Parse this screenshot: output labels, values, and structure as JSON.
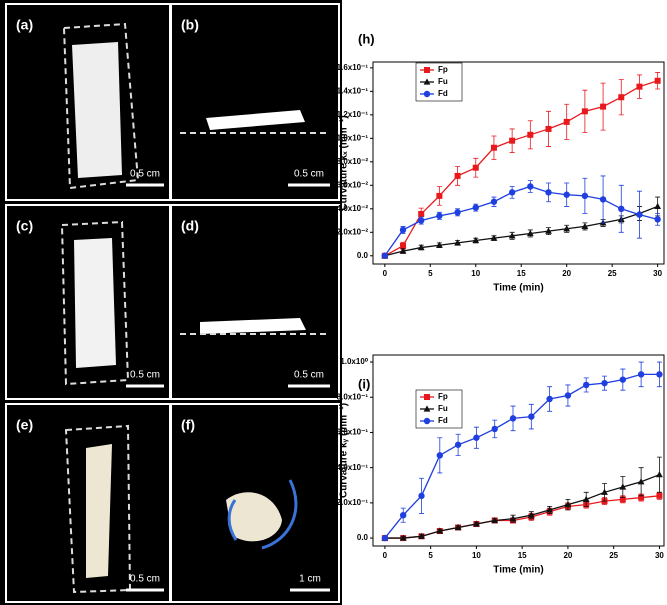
{
  "photo_panels": [
    {
      "label": "(a)",
      "scale": "0.5 cm"
    },
    {
      "label": "(b)",
      "scale": "0.5 cm"
    },
    {
      "label": "(c)",
      "scale": "0.5 cm"
    },
    {
      "label": "(d)",
      "scale": "0.5 cm"
    },
    {
      "label": "(e)",
      "scale": "0.5 cm"
    },
    {
      "label": "(f)",
      "scale": "1 cm"
    }
  ],
  "chart_data": [
    {
      "type": "line",
      "title": "(h)",
      "y_label": "Curvature κₓ (mm⁻¹)",
      "x_label": "Time (min)",
      "x": [
        0,
        2,
        4,
        6,
        8,
        10,
        12,
        14,
        16,
        18,
        20,
        22,
        24,
        26,
        28,
        30
      ],
      "xlim": [
        -1.3,
        30.7
      ],
      "xticks": [
        0,
        5,
        10,
        15,
        20,
        25,
        30
      ],
      "ylim": [
        -0.007,
        0.165
      ],
      "yticks": [
        {
          "value": 0,
          "label": "0.0"
        },
        {
          "value": 0.02,
          "label": "2.0x10⁻²"
        },
        {
          "value": 0.04,
          "label": "4.0x10⁻²"
        },
        {
          "value": 0.06,
          "label": "6.0x10⁻²"
        },
        {
          "value": 0.08,
          "label": "8.0x10⁻²"
        },
        {
          "value": 0.1,
          "label": "1.0x10⁻¹"
        },
        {
          "value": 0.12,
          "label": "1.2x10⁻¹"
        },
        {
          "value": 0.14,
          "label": "1.4x10⁻¹"
        },
        {
          "value": 0.16,
          "label": "1.6x10⁻¹"
        }
      ],
      "series": [
        {
          "name": "Fp",
          "color": "#e8191d",
          "marker": "square",
          "values": [
            0,
            0.0085,
            0.0356,
            0.051,
            0.068,
            0.075,
            0.092,
            0.098,
            0.103,
            0.108,
            0.114,
            0.123,
            0.127,
            0.135,
            0.144,
            0.149
          ],
          "errors": [
            0,
            0.003,
            0.005,
            0.008,
            0.008,
            0.008,
            0.01,
            0.01,
            0.012,
            0.015,
            0.015,
            0.018,
            0.02,
            0.015,
            0.01,
            0.007
          ]
        },
        {
          "name": "Fu",
          "color": "#111111",
          "marker": "triangle",
          "values": [
            0,
            0.004,
            0.007,
            0.009,
            0.011,
            0.013,
            0.015,
            0.017,
            0.019,
            0.021,
            0.023,
            0.025,
            0.028,
            0.031,
            0.036,
            0.042
          ],
          "errors": [
            0,
            0.002,
            0.002,
            0.002,
            0.002,
            0.002,
            0.002,
            0.003,
            0.003,
            0.003,
            0.003,
            0.003,
            0.003,
            0.003,
            0.006,
            0.008
          ]
        },
        {
          "name": "Fd",
          "color": "#1f3fe0",
          "marker": "circle",
          "values": [
            0,
            0.022,
            0.03,
            0.034,
            0.037,
            0.041,
            0.046,
            0.054,
            0.059,
            0.054,
            0.052,
            0.051,
            0.048,
            0.04,
            0.035,
            0.031
          ],
          "errors": [
            0,
            0.003,
            0.003,
            0.003,
            0.003,
            0.003,
            0.004,
            0.005,
            0.005,
            0.008,
            0.01,
            0.015,
            0.02,
            0.02,
            0.02,
            0.005
          ]
        }
      ]
    },
    {
      "type": "line",
      "title": "(i)",
      "y_label": "Curvature κᵧ (mm⁻¹)",
      "x_label": "Time (min)",
      "x": [
        0,
        2,
        4,
        6,
        8,
        10,
        12,
        14,
        16,
        18,
        20,
        22,
        24,
        26,
        28,
        30
      ],
      "xlim": [
        -1.3,
        30.5
      ],
      "xticks": [
        0,
        5,
        10,
        15,
        20,
        25,
        30
      ],
      "ylim": [
        -0.045,
        1.04
      ],
      "yticks": [
        {
          "value": 0,
          "label": "0.0"
        },
        {
          "value": 0.2,
          "label": "2.0x10⁻¹"
        },
        {
          "value": 0.4,
          "label": "4.0x10⁻¹"
        },
        {
          "value": 0.6,
          "label": "6.0x10⁻¹"
        },
        {
          "value": 0.8,
          "label": "8.0x10⁻¹"
        },
        {
          "value": 1.0,
          "label": "1.0x10⁰"
        }
      ],
      "series": [
        {
          "name": "Fp",
          "color": "#e8191d",
          "marker": "square",
          "values": [
            0,
            0,
            0.01,
            0.04,
            0.06,
            0.08,
            0.1,
            0.1,
            0.12,
            0.15,
            0.18,
            0.19,
            0.21,
            0.22,
            0.23,
            0.24
          ],
          "errors": [
            0,
            0.01,
            0.01,
            0.01,
            0.01,
            0.01,
            0.01,
            0.01,
            0.02,
            0.02,
            0.02,
            0.02,
            0.02,
            0.02,
            0.02,
            0.02
          ]
        },
        {
          "name": "Fu",
          "color": "#111111",
          "marker": "triangle",
          "values": [
            0,
            0,
            0.01,
            0.04,
            0.06,
            0.08,
            0.1,
            0.11,
            0.13,
            0.16,
            0.19,
            0.22,
            0.26,
            0.29,
            0.32,
            0.36
          ],
          "errors": [
            0,
            0.01,
            0.01,
            0.01,
            0.01,
            0.01,
            0.01,
            0.02,
            0.02,
            0.02,
            0.03,
            0.04,
            0.05,
            0.06,
            0.08,
            0.1
          ]
        },
        {
          "name": "Fd",
          "color": "#1f3fe0",
          "marker": "circle",
          "values": [
            0,
            0.13,
            0.24,
            0.47,
            0.53,
            0.57,
            0.62,
            0.68,
            0.69,
            0.79,
            0.81,
            0.87,
            0.88,
            0.9,
            0.93,
            0.93
          ],
          "errors": [
            0,
            0.04,
            0.1,
            0.1,
            0.06,
            0.06,
            0.05,
            0.07,
            0.07,
            0.07,
            0.06,
            0.04,
            0.04,
            0.06,
            0.07,
            0.07
          ]
        }
      ]
    }
  ]
}
